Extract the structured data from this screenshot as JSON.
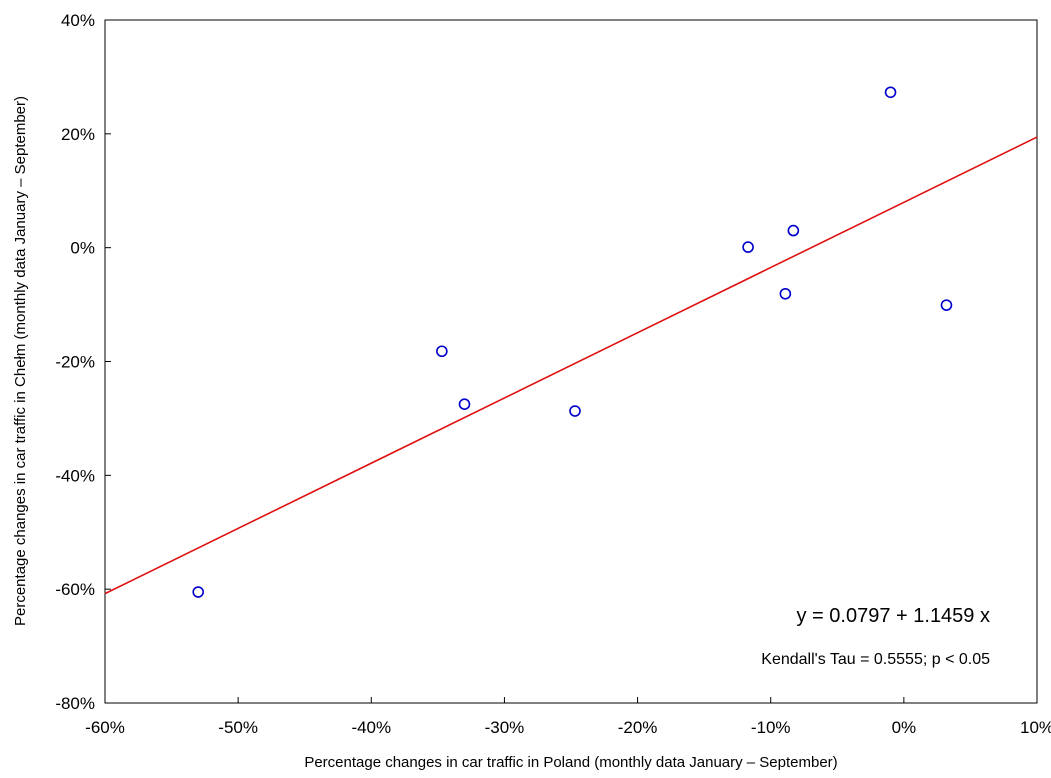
{
  "chart_data": {
    "type": "scatter",
    "title": "",
    "xlabel": "Percentage changes in car traffic in Poland (monthly data January – September)",
    "ylabel": "Percentage changes in car traffic in Chełm (monthly data January – September)",
    "xlim": [
      -0.6,
      0.1
    ],
    "ylim": [
      -0.8,
      0.4
    ],
    "x_ticks": [
      -0.6,
      -0.5,
      -0.4,
      -0.3,
      -0.2,
      -0.1,
      0.0,
      0.1
    ],
    "x_tick_labels": [
      "-60%",
      "-50%",
      "-40%",
      "-30%",
      "-20%",
      "-10%",
      "0%",
      "10%"
    ],
    "y_ticks": [
      0.4,
      0.2,
      0.0,
      -0.2,
      -0.4,
      -0.6,
      -0.8
    ],
    "y_tick_labels": [
      "40%",
      "20%",
      "0%",
      "-20%",
      "-40%",
      "-60%",
      "-80%"
    ],
    "grid": false,
    "points": [
      {
        "x": -0.53,
        "y": -0.605
      },
      {
        "x": -0.347,
        "y": -0.182
      },
      {
        "x": -0.33,
        "y": -0.275
      },
      {
        "x": -0.247,
        "y": -0.287
      },
      {
        "x": -0.117,
        "y": 0.001
      },
      {
        "x": -0.083,
        "y": 0.03
      },
      {
        "x": -0.089,
        "y": -0.081
      },
      {
        "x": -0.01,
        "y": 0.273
      },
      {
        "x": 0.032,
        "y": -0.101
      }
    ],
    "regression": {
      "intercept": 0.0797,
      "slope": 1.1459,
      "color": "#e01010"
    },
    "point_color": "#0000cc",
    "annotations": {
      "equation": "y = 0.0797 + 1.1459 x",
      "stat": "Kendall's Tau = 0.5555; p < 0.05"
    }
  }
}
